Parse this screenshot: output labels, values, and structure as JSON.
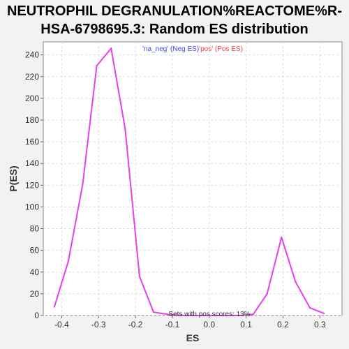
{
  "chart_data": {
    "type": "line",
    "title_lines": [
      "NEUTROPHIL DEGRANULATION%REACTOME%R-",
      "HSA-6798695.3: Random ES distribution"
    ],
    "xlabel": "ES",
    "ylabel": "P(ES)",
    "xlim": [
      -0.45,
      0.36
    ],
    "ylim": [
      0,
      252
    ],
    "x_ticks": [
      -0.4,
      -0.3,
      -0.2,
      -0.1,
      0.0,
      0.1,
      0.2,
      0.3
    ],
    "x_tick_labels": [
      "-0.4",
      "-0.3",
      "-0.2",
      "-0.1",
      "0.0",
      "0.1",
      "0.2",
      "0.3"
    ],
    "y_ticks": [
      0,
      20,
      40,
      60,
      80,
      100,
      120,
      140,
      160,
      180,
      200,
      220,
      240
    ],
    "y_tick_labels": [
      "0",
      "20",
      "40",
      "60",
      "80",
      "100",
      "120",
      "140",
      "160",
      "180",
      "200",
      "220",
      "240"
    ],
    "grid": true,
    "legend": {
      "position": "top-center",
      "neg_label": "'na_neg' (Neg ES)",
      "pos_label": "'pos' (Pos ES)",
      "neg_color": "#4444ee",
      "pos_color": "#ee4444"
    },
    "annotation": "Sets with pos scores: 13%",
    "series": [
      {
        "color": "#e83ef0",
        "x": [
          -0.42,
          -0.382,
          -0.343,
          -0.305,
          -0.266,
          -0.228,
          -0.189,
          -0.151,
          -0.112,
          -0.074,
          -0.035,
          0.003,
          0.042,
          0.08,
          0.119,
          0.157,
          0.196,
          0.234,
          0.273,
          0.311
        ],
        "y": [
          8,
          50,
          121,
          230,
          246,
          172,
          36,
          3,
          1,
          0,
          0,
          0,
          0,
          0,
          1,
          20,
          72,
          31,
          7,
          2
        ]
      }
    ]
  }
}
